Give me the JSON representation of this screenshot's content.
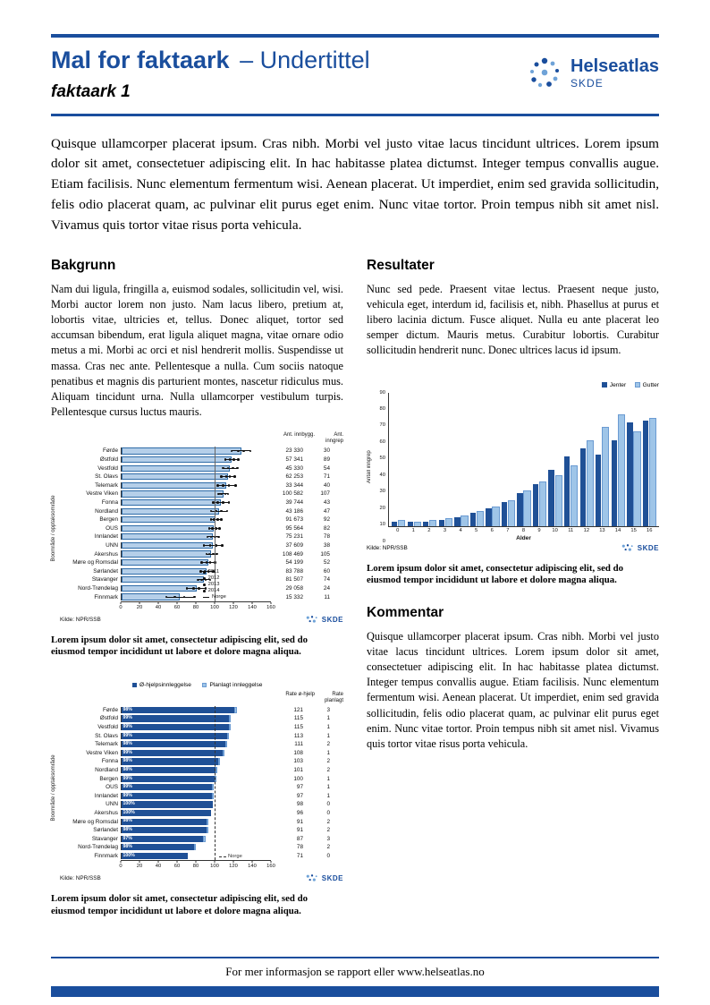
{
  "header": {
    "title_bold": "Mal for faktaark",
    "title_sub": "– Undertittel",
    "subtitle": "faktaark 1",
    "brand": "Helseatlas",
    "brand_sub": "SKDE"
  },
  "intro": "Quisque ullamcorper placerat ipsum. Cras nibh. Morbi vel justo vitae lacus tincidunt ultrices. Lorem ipsum dolor sit amet, consectetuer adipiscing elit. In hac habitasse platea dictumst. Integer tempus convallis augue. Etiam facilisis. Nunc elementum fermentum wisi. Aenean placerat. Ut imperdiet, enim sed gravida sollicitudin, felis odio placerat quam, ac pulvinar elit purus eget enim. Nunc vitae tortor. Proin tempus nibh sit amet nisl. Vivamus quis tortor vitae risus porta vehicula.",
  "sections": {
    "bakgrunn": {
      "heading": "Bakgrunn",
      "body": "Nam dui ligula, fringilla a, euismod sodales, sollicitudin vel, wisi. Morbi auctor lorem non justo. Nam lacus libero, pretium at, lobortis vitae, ultricies et, tellus. Donec aliquet, tortor sed accumsan bibendum, erat ligula aliquet magna, vitae ornare odio metus a mi. Morbi ac orci et nisl hendrerit mollis. Suspendisse ut massa. Cras nec ante. Pellentesque a nulla. Cum sociis natoque penatibus et magnis dis parturient montes, nascetur ridiculus mus. Aliquam tincidunt urna. Nulla ullamcorper vestibulum turpis. Pellentesque cursus luctus mauris."
    },
    "resultater": {
      "heading": "Resultater",
      "body": "Nunc sed pede. Praesent vitae lectus. Praesent neque justo, vehicula eget, interdum id, facilisis et, nibh. Phasellus at purus et libero lacinia dictum. Fusce aliquet. Nulla eu ante placerat leo semper dictum. Mauris metus. Curabitur lobortis. Curabitur sollicitudin hendrerit nunc. Donec ultrices lacus id ipsum."
    },
    "kommentar": {
      "heading": "Kommentar",
      "body": "Quisque ullamcorper placerat ipsum. Cras nibh. Morbi vel justo vitae lacus tincidunt ultrices. Lorem ipsum dolor sit amet, consectetuer adipiscing elit. In hac habitasse platea dictumst. Integer tempus convallis augue. Etiam facilisis. Nunc elementum fermentum wisi. Aenean placerat. Ut imperdiet, enim sed gravida sollicitudin, felis odio placerat quam, ac pulvinar elit purus eget enim. Nunc vitae tortor. Proin tempus nibh sit amet nisl. Vivamus quis tortor vitae risus porta vehicula."
    }
  },
  "captions": {
    "fig1": "Lorem ipsum dolor sit amet, consectetur adipiscing elit, sed do eiusmod tempor incididunt ut labore et dolore magna aliqua.",
    "fig2": "Lorem ipsum dolor sit amet, consectetur adipiscing elit, sed do eiusmod tempor incididunt ut labore et dolore magna aliqua.",
    "fig3": "Lorem ipsum dolor sit amet, consectetur adipiscing elit, sed do eiusmod tempor incididunt ut labore et dolore magna aliqua."
  },
  "footer": {
    "text": "For mer informasjon se rapport eller www.helseatlas.no"
  },
  "colors": {
    "primary_blue": "#1a4e9d",
    "bar_dark": "#1f5096",
    "bar_light": "#9fc5e8",
    "bar1_fill": "#b5cfe9"
  },
  "chart_data": [
    {
      "type": "bar",
      "orientation": "horizontal",
      "ylabel": "Boområde / opptaksområde",
      "xlim": [
        0,
        160
      ],
      "xticks": [
        0,
        20,
        40,
        60,
        80,
        100,
        120,
        140,
        160
      ],
      "reference_value": 100,
      "col_headers": [
        "Ant. innbygg.",
        "Ant. inngrep"
      ],
      "legend": [
        "2011",
        "2012",
        "2013",
        "2014",
        "Norge"
      ],
      "source": "Kilde: NPR/SSB",
      "rows": [
        {
          "name": "Førde",
          "rate": 128,
          "points": [
            118,
            125,
            131,
            138
          ],
          "innbygg": "23 330",
          "inngrep": "30"
        },
        {
          "name": "Østfold",
          "rate": 118,
          "points": [
            111,
            116,
            120,
            125
          ],
          "innbygg": "57 341",
          "inngrep": "89"
        },
        {
          "name": "Vestfold",
          "rate": 116,
          "points": [
            109,
            114,
            119,
            124
          ],
          "innbygg": "45 330",
          "inngrep": "54"
        },
        {
          "name": "St. Olavs",
          "rate": 114,
          "points": [
            107,
            112,
            116,
            121
          ],
          "innbygg": "62 253",
          "inngrep": "71"
        },
        {
          "name": "Telemark",
          "rate": 112,
          "points": [
            103,
            109,
            115,
            122
          ],
          "innbygg": "33 344",
          "inngrep": "40"
        },
        {
          "name": "Vestre Viken",
          "rate": 109,
          "points": [
            104,
            107,
            111,
            114
          ],
          "innbygg": "100 582",
          "inngrep": "107"
        },
        {
          "name": "Fonna",
          "rate": 106,
          "points": [
            98,
            103,
            109,
            115
          ],
          "innbygg": "39 744",
          "inngrep": "43"
        },
        {
          "name": "Nordland",
          "rate": 104,
          "points": [
            96,
            101,
            107,
            113
          ],
          "innbygg": "43 186",
          "inngrep": "47"
        },
        {
          "name": "Bergen",
          "rate": 101,
          "points": [
            96,
            99,
            103,
            107
          ],
          "innbygg": "91 673",
          "inngrep": "92"
        },
        {
          "name": "OUS",
          "rate": 99,
          "points": [
            94,
            97,
            101,
            105
          ],
          "innbygg": "95 564",
          "inngrep": "82"
        },
        {
          "name": "Innlandet",
          "rate": 98,
          "points": [
            92,
            96,
            100,
            104
          ],
          "innbygg": "75 231",
          "inngrep": "78"
        },
        {
          "name": "UNN",
          "rate": 98,
          "points": [
            88,
            95,
            101,
            108
          ],
          "innbygg": "37 609",
          "inngrep": "38"
        },
        {
          "name": "Akershus",
          "rate": 96,
          "points": [
            91,
            94,
            98,
            102
          ],
          "innbygg": "108 469",
          "inngrep": "105"
        },
        {
          "name": "Møre og Romsdal",
          "rate": 93,
          "points": [
            86,
            91,
            95,
            100
          ],
          "innbygg": "54 199",
          "inngrep": "52"
        },
        {
          "name": "Sørlandet",
          "rate": 91,
          "points": [
            85,
            89,
            93,
            98
          ],
          "innbygg": "83 788",
          "inngrep": "60"
        },
        {
          "name": "Stavanger",
          "rate": 88,
          "points": [
            82,
            86,
            90,
            95
          ],
          "innbygg": "81 507",
          "inngrep": "74"
        },
        {
          "name": "Nord-Trøndelag",
          "rate": 80,
          "points": [
            70,
            77,
            83,
            90
          ],
          "innbygg": "29 058",
          "inngrep": "24"
        },
        {
          "name": "Finnmark",
          "rate": 62,
          "points": [
            48,
            57,
            67,
            78
          ],
          "innbygg": "15 332",
          "inngrep": "11"
        }
      ]
    },
    {
      "type": "bar",
      "orientation": "horizontal",
      "stacked": true,
      "series": [
        "Ø-hjelpsinnleggelse",
        "Planlagt innleggelse"
      ],
      "ylabel": "Boområde / opptaksområde",
      "xlim": [
        0,
        160
      ],
      "xticks": [
        0,
        20,
        40,
        60,
        80,
        100,
        120,
        140,
        160
      ],
      "reference_value": 100,
      "reference_label": "Norge",
      "col_headers": [
        "Rate ø-hjelp",
        "Rate planlagt"
      ],
      "source": "Kilde: NPR/SSB",
      "rows": [
        {
          "name": "Førde",
          "pct": "98%",
          "ohjelp": 121,
          "planlagt": 3
        },
        {
          "name": "Østfold",
          "pct": "99%",
          "ohjelp": 115,
          "planlagt": 1
        },
        {
          "name": "Vestfold",
          "pct": "99%",
          "ohjelp": 115,
          "planlagt": 1
        },
        {
          "name": "St. Olavs",
          "pct": "99%",
          "ohjelp": 113,
          "planlagt": 1
        },
        {
          "name": "Telemark",
          "pct": "98%",
          "ohjelp": 111,
          "planlagt": 2
        },
        {
          "name": "Vestre Viken",
          "pct": "99%",
          "ohjelp": 108,
          "planlagt": 1
        },
        {
          "name": "Fonna",
          "pct": "98%",
          "ohjelp": 103,
          "planlagt": 2
        },
        {
          "name": "Nordland",
          "pct": "98%",
          "ohjelp": 101,
          "planlagt": 2
        },
        {
          "name": "Bergen",
          "pct": "99%",
          "ohjelp": 100,
          "planlagt": 1
        },
        {
          "name": "OUS",
          "pct": "99%",
          "ohjelp": 97,
          "planlagt": 1
        },
        {
          "name": "Innlandet",
          "pct": "99%",
          "ohjelp": 97,
          "planlagt": 1
        },
        {
          "name": "UNN",
          "pct": "100%",
          "ohjelp": 98,
          "planlagt": 0
        },
        {
          "name": "Akershus",
          "pct": "100%",
          "ohjelp": 96,
          "planlagt": 0
        },
        {
          "name": "Møre og Romsdal",
          "pct": "98%",
          "ohjelp": 91,
          "planlagt": 2
        },
        {
          "name": "Sørlandet",
          "pct": "98%",
          "ohjelp": 91,
          "planlagt": 2
        },
        {
          "name": "Stavanger",
          "pct": "97%",
          "ohjelp": 87,
          "planlagt": 3
        },
        {
          "name": "Nord-Trøndelag",
          "pct": "98%",
          "ohjelp": 78,
          "planlagt": 2
        },
        {
          "name": "Finnmark",
          "pct": "100%",
          "ohjelp": 71,
          "planlagt": 0
        }
      ]
    },
    {
      "type": "bar",
      "orientation": "vertical",
      "categories": [
        "0",
        "1",
        "2",
        "3",
        "4",
        "5",
        "6",
        "7",
        "8",
        "9",
        "10",
        "11",
        "12",
        "13",
        "14",
        "15",
        "16"
      ],
      "series": [
        {
          "name": "Jenter",
          "values": [
            3,
            3,
            3,
            4,
            6,
            9,
            12,
            16,
            22,
            28,
            38,
            47,
            52,
            48,
            58,
            70,
            71
          ]
        },
        {
          "name": "Gutter",
          "values": [
            4,
            3,
            4,
            5,
            7,
            10,
            13,
            17,
            24,
            30,
            34,
            41,
            58,
            67,
            75,
            64,
            73
          ]
        }
      ],
      "xlabel": "Alder",
      "ylabel": "Antall inngrep",
      "ylim": [
        0,
        90
      ],
      "yticks": [
        0,
        10,
        20,
        30,
        40,
        50,
        60,
        70,
        80,
        90
      ],
      "source": "Kilde: NPR/SSB"
    }
  ]
}
